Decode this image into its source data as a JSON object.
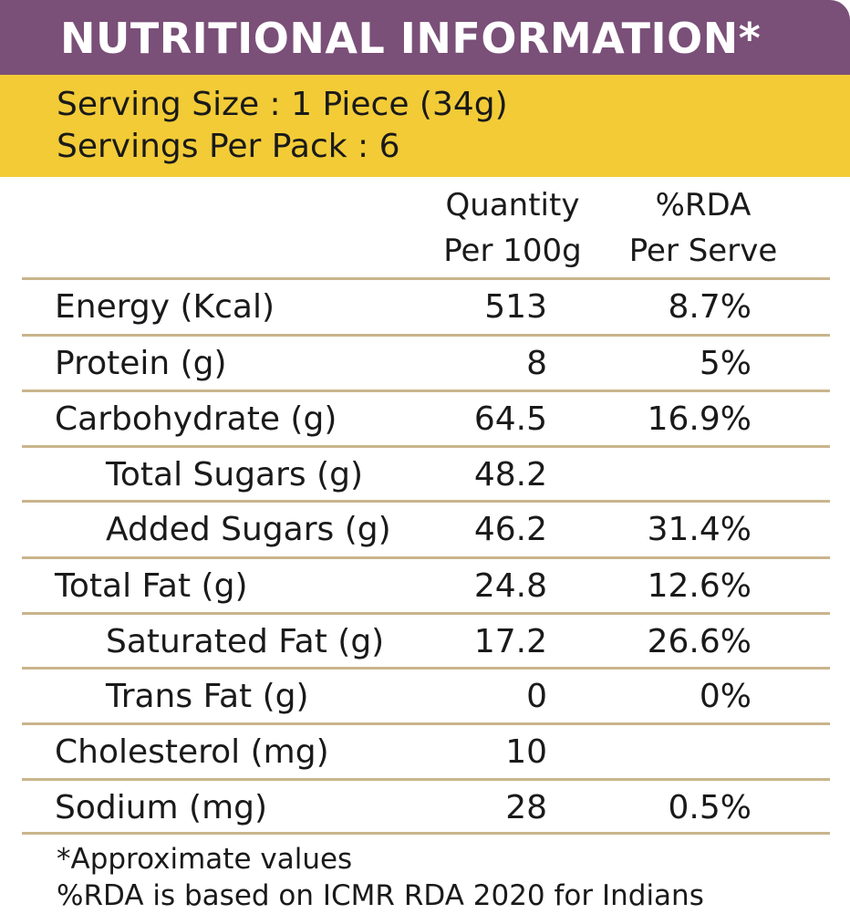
{
  "colors": {
    "header_bg": "#7a4f78",
    "serving_bg": "#f2cb37",
    "rule": "#c9b58c"
  },
  "header": {
    "title": "NUTRITIONAL INFORMATION*"
  },
  "serving": {
    "size": "Serving Size : 1 Piece (34g)",
    "per_pack": "Servings Per Pack : 6"
  },
  "columns": {
    "qty_line1": "Quantity",
    "qty_line2": "Per 100g",
    "rda_line1": "%RDA",
    "rda_line2": "Per Serve"
  },
  "rows": [
    {
      "label": "Energy (Kcal)",
      "qty": "513",
      "rda": "8.7%",
      "indent": 0
    },
    {
      "label": "Protein (g)",
      "qty": "8",
      "rda": "5%",
      "indent": 0
    },
    {
      "label": "Carbohydrate (g)",
      "qty": "64.5",
      "rda": "16.9%",
      "indent": 0
    },
    {
      "label": "Total Sugars (g)",
      "qty": "48.2",
      "rda": "",
      "indent": 1
    },
    {
      "label": "Added Sugars (g)",
      "qty": "46.2",
      "rda": "31.4%",
      "indent": 1
    },
    {
      "label": "Total Fat (g)",
      "qty": "24.8",
      "rda": "12.6%",
      "indent": 0
    },
    {
      "label": "Saturated Fat (g)",
      "qty": "17.2",
      "rda": "26.6%",
      "indent": 1
    },
    {
      "label": "Trans Fat (g)",
      "qty": "0",
      "rda": "0%",
      "indent": 1
    },
    {
      "label": "Cholesterol (mg)",
      "qty": "10",
      "rda": "",
      "indent": 0
    },
    {
      "label": "Sodium (mg)",
      "qty": "28",
      "rda": "0.5%",
      "indent": 0
    }
  ],
  "footnotes": {
    "line1": "*Approximate values",
    "line2": "%RDA is based on ICMR RDA 2020 for Indians"
  }
}
